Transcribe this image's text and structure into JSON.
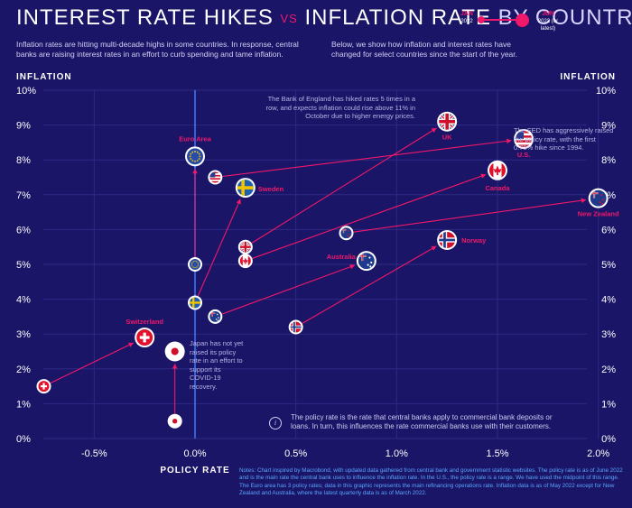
{
  "header": {
    "title_a": "INTEREST RATE HIKES",
    "title_vs": "VS",
    "title_b": "INFLATION RATE",
    "title_c": "BY COUNTRY",
    "intro_left": "Inflation rates are hitting multi-decade highs in some countries. In response, central banks are raising interest rates in an effort to curb spending and tame inflation.",
    "intro_right": "Below, we show how inflation and interest rates have changed for select countries since the start of the year."
  },
  "legend": {
    "start_label": "JAN",
    "start_sub": "2022",
    "end_label": "JUN",
    "end_sub": "2022 (or latest)"
  },
  "annotations": {
    "boe": "The Bank of England has hiked rates 5 times in a row, and expects inflation could rise above 11% in October due to higher energy prices.",
    "fed": "The FED has aggressively raised the policy rate, with the first 0.75% hike since 1994.",
    "japan": "Japan has not yet raised its policy rate in an effort to support its COVID-19 recovery.",
    "policy_info": "The policy rate is the rate that central banks apply to commercial bank deposits or loans. In turn, this influences the rate commercial banks use with their customers."
  },
  "footnote": "Notes: Chart inspired by Macrobond, with updated data gathered from central bank and government statistic websites. The policy rate is as of June 2022 and is the main rate the central bank uses to influence the inflation rate. In the U.S., the policy rate is a range. We have used the midpoint of this range. The Euro area has 3 policy rates; data in this graphic represents the main refinancing operations rate. Inflation data is as of May 2022 except for New Zealand and Australia, where the latest quarterly data is as of March 2022.",
  "colors": {
    "background": "#1a1566",
    "accent": "#f0186a",
    "grid": "#2e2a85",
    "axis_text": "#ffffff"
  },
  "chart_data": {
    "type": "scatter",
    "xlabel": "POLICY RATE",
    "ylabel_left": "INFLATION",
    "ylabel_right": "INFLATION",
    "xlim": [
      -0.9,
      2.1
    ],
    "ylim": [
      0,
      10
    ],
    "x_ticks": [
      -0.5,
      0.0,
      0.5,
      1.0,
      1.5,
      2.0
    ],
    "x_tick_labels": [
      "-0.5%",
      "0.0%",
      "0.5%",
      "1.0%",
      "1.5%",
      "2.0%"
    ],
    "y_ticks": [
      0,
      1,
      2,
      3,
      4,
      5,
      6,
      7,
      8,
      9,
      10
    ],
    "y_tick_labels": [
      "0%",
      "1%",
      "2%",
      "3%",
      "4%",
      "5%",
      "6%",
      "7%",
      "8%",
      "9%",
      "10%"
    ],
    "grid": true,
    "series": [
      {
        "name": "U.S.",
        "flag": "us-flag-icon",
        "jan": [
          0.1,
          7.5
        ],
        "latest": [
          1.63,
          8.6
        ]
      },
      {
        "name": "UK",
        "flag": "uk-flag-icon",
        "jan": [
          0.25,
          5.5
        ],
        "latest": [
          1.25,
          9.1
        ]
      },
      {
        "name": "Euro Area",
        "flag": "eu-flag-icon",
        "jan": [
          0.0,
          5.0
        ],
        "latest": [
          0.0,
          8.1
        ]
      },
      {
        "name": "Sweden",
        "flag": "sweden-flag-icon",
        "jan": [
          0.0,
          3.9
        ],
        "latest": [
          0.25,
          7.2
        ]
      },
      {
        "name": "Canada",
        "flag": "canada-flag-icon",
        "jan": [
          0.25,
          5.1
        ],
        "latest": [
          1.5,
          7.7
        ]
      },
      {
        "name": "New Zealand",
        "flag": "new-zealand-flag-icon",
        "jan": [
          0.75,
          5.9
        ],
        "latest": [
          2.0,
          6.9
        ]
      },
      {
        "name": "Norway",
        "flag": "norway-flag-icon",
        "jan": [
          0.5,
          3.2
        ],
        "latest": [
          1.25,
          5.7
        ]
      },
      {
        "name": "Australia",
        "flag": "australia-flag-icon",
        "jan": [
          0.1,
          3.5
        ],
        "latest": [
          0.85,
          5.1
        ]
      },
      {
        "name": "Switzerland",
        "flag": "switzerland-flag-icon",
        "jan": [
          -0.75,
          1.5
        ],
        "latest": [
          -0.25,
          2.9
        ]
      },
      {
        "name": "Japan",
        "flag": "japan-flag-icon",
        "jan": [
          -0.1,
          0.5
        ],
        "latest": [
          -0.1,
          2.5
        ]
      }
    ]
  }
}
